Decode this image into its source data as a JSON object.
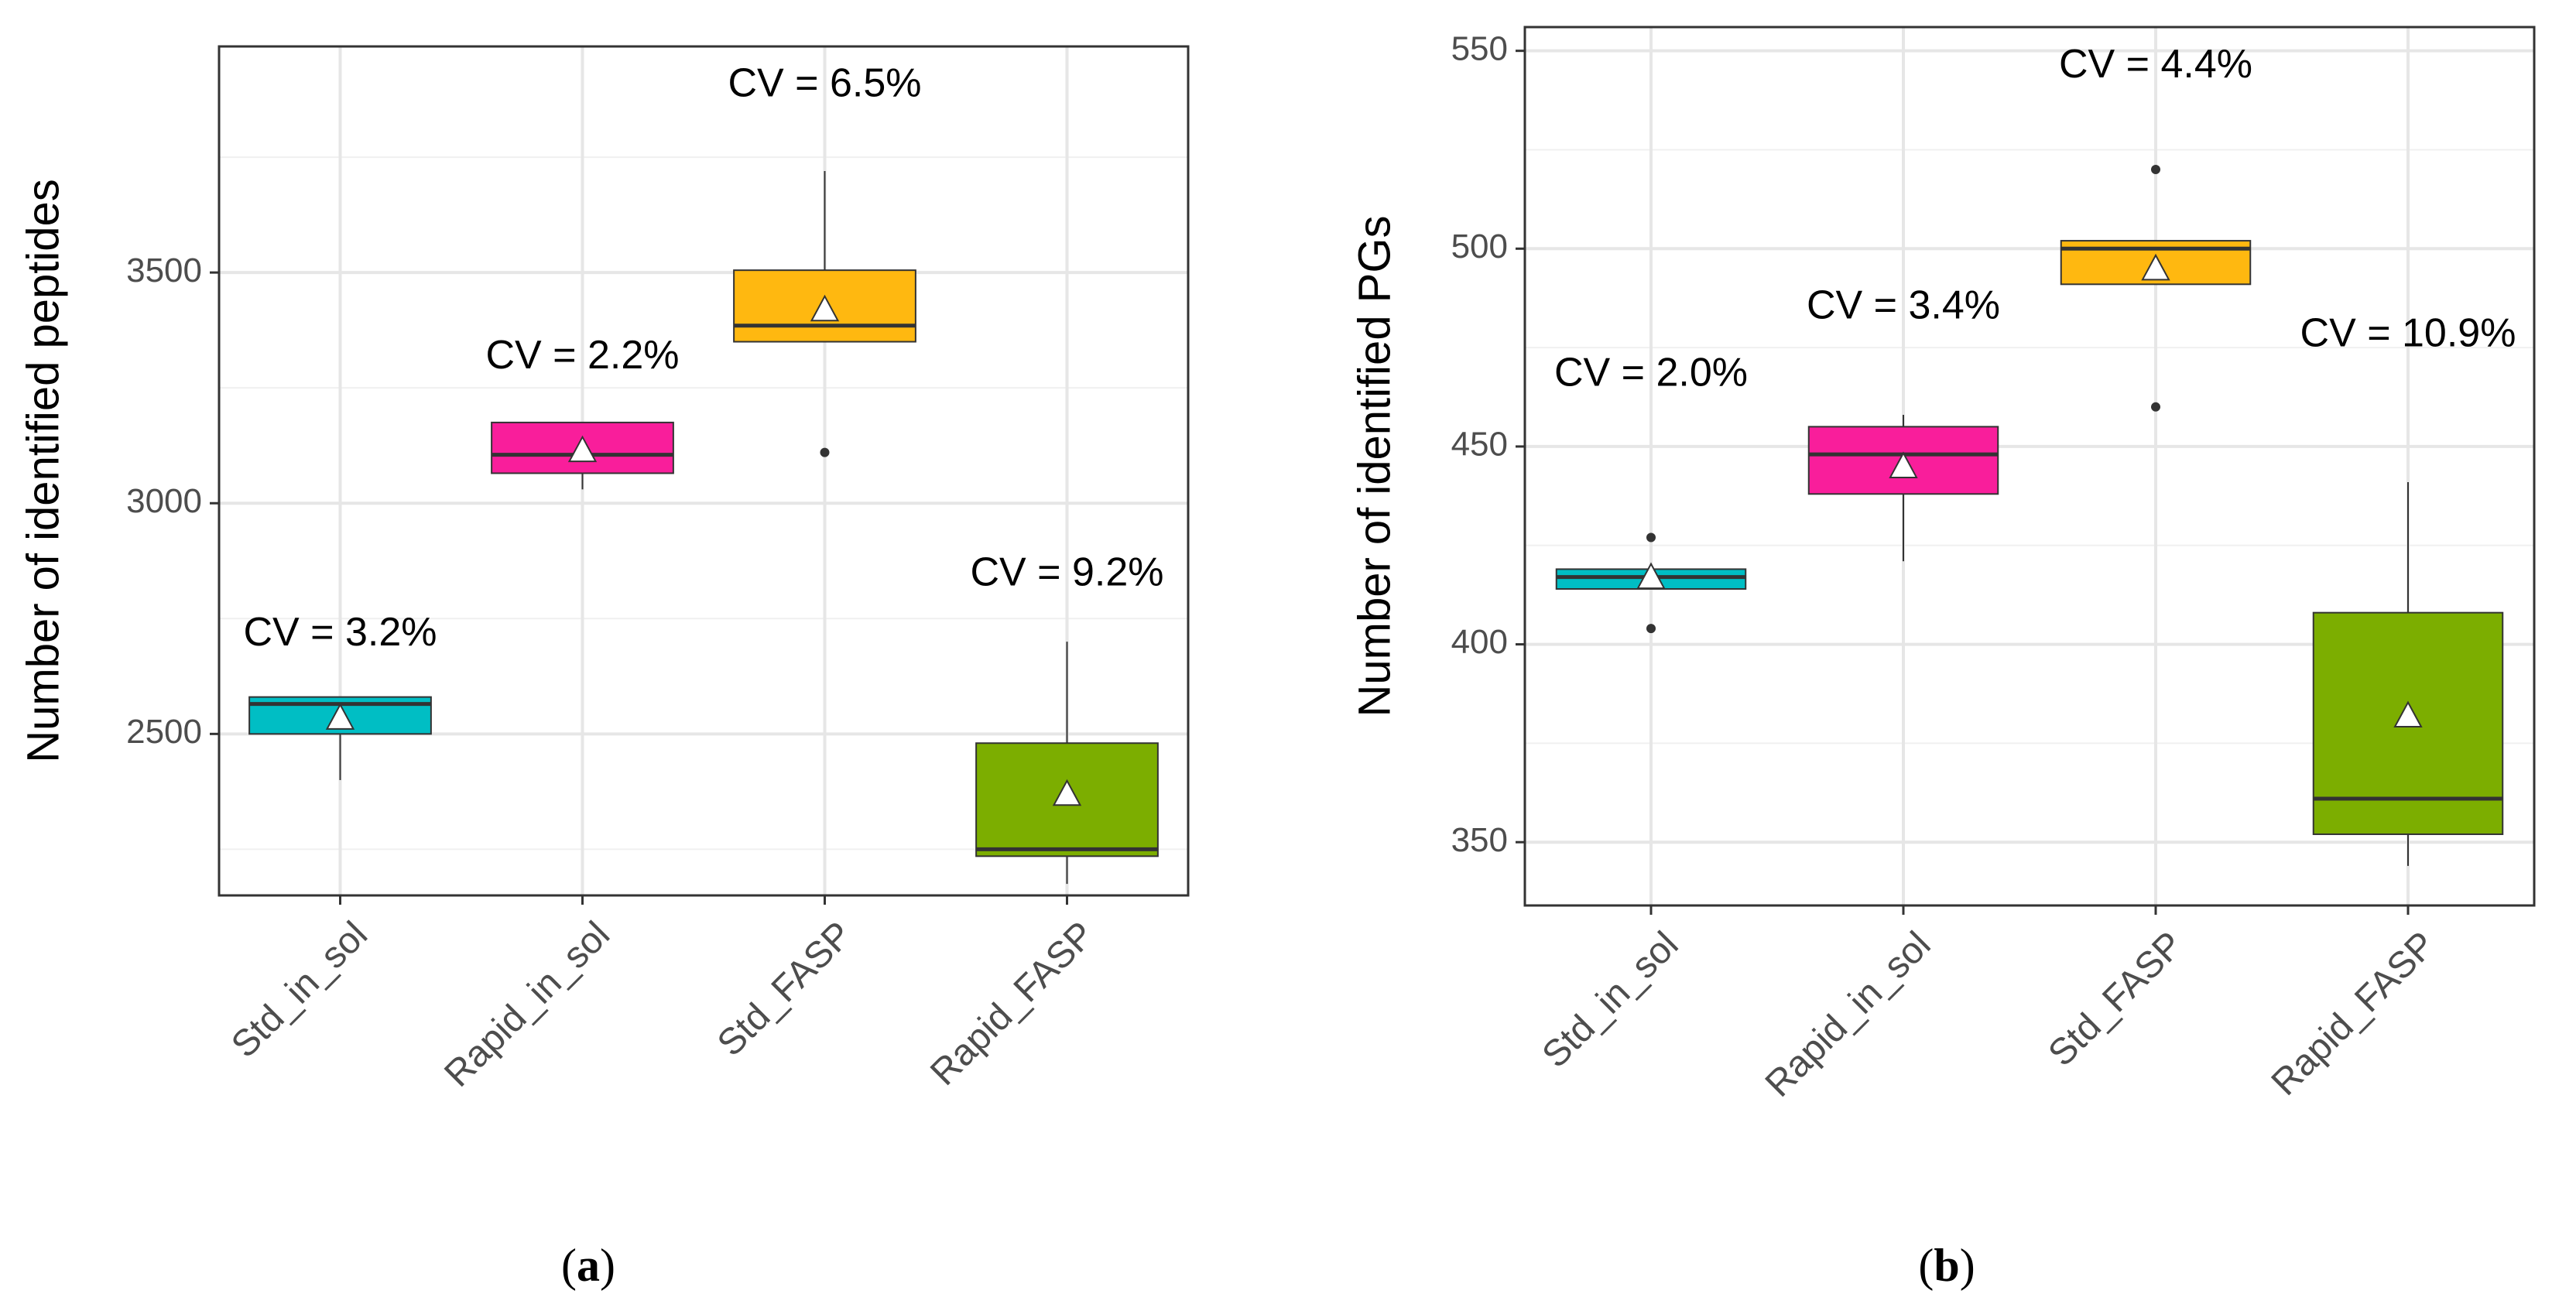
{
  "chart_data": [
    {
      "type": "box",
      "ylabel": "Number of identified peptides",
      "ylim": [
        2150,
        3990
      ],
      "y_ticks": [
        2500,
        3000,
        3500
      ],
      "y_tick_labels": [
        "2500",
        "3000",
        "3500"
      ],
      "categories": [
        "Std_in_sol",
        "Rapid_in_sol",
        "Std_FASP",
        "Rapid_FASP"
      ],
      "colors": [
        "#00BEC4",
        "#F91E9B",
        "#FFB810",
        "#7CAE00"
      ],
      "boxes": [
        {
          "category": "Std_in_sol",
          "whisker_low": 2400,
          "q1": 2500,
          "median": 2565,
          "q3": 2580,
          "whisker_high": 2580,
          "mean": 2535,
          "outliers": []
        },
        {
          "category": "Rapid_in_sol",
          "whisker_low": 3030,
          "q1": 3065,
          "median": 3105,
          "q3": 3175,
          "whisker_high": 3175,
          "mean": 3115,
          "outliers": []
        },
        {
          "category": "Std_FASP",
          "whisker_low": 3350,
          "q1": 3350,
          "median": 3385,
          "q3": 3505,
          "whisker_high": 3720,
          "mean": 3420,
          "outliers": [
            3110
          ]
        },
        {
          "category": "Rapid_FASP",
          "whisker_low": 2175,
          "q1": 2235,
          "median": 2250,
          "q3": 2480,
          "whisker_high": 2700,
          "mean": 2370,
          "outliers": []
        }
      ],
      "annotations": [
        {
          "text": "CV = 3.2%",
          "category": "Std_in_sol",
          "y": 2715
        },
        {
          "text": "CV = 2.2%",
          "category": "Rapid_in_sol",
          "y": 3315
        },
        {
          "text": "CV = 6.5%",
          "category": "Std_FASP",
          "y": 3905
        },
        {
          "text": "CV = 9.2%",
          "category": "Rapid_FASP",
          "y": 2845
        }
      ],
      "panel_label": "a",
      "grid": true
    },
    {
      "type": "box",
      "ylabel": "Number of identified PGs",
      "ylim": [
        334,
        556
      ],
      "y_ticks": [
        350,
        400,
        450,
        500,
        550
      ],
      "y_tick_labels": [
        "350",
        "400",
        "450",
        "500",
        "550"
      ],
      "categories": [
        "Std_in_sol",
        "Rapid_in_sol",
        "Std_FASP",
        "Rapid_FASP"
      ],
      "colors": [
        "#00BEC4",
        "#F91E9B",
        "#FFB810",
        "#7CAE00"
      ],
      "boxes": [
        {
          "category": "Std_in_sol",
          "whisker_low": 414,
          "q1": 414,
          "median": 417,
          "q3": 419,
          "whisker_high": 419,
          "mean": 417,
          "outliers": [
            427,
            404
          ]
        },
        {
          "category": "Rapid_in_sol",
          "whisker_low": 421,
          "q1": 438,
          "median": 448,
          "q3": 455,
          "whisker_high": 458,
          "mean": 445,
          "outliers": []
        },
        {
          "category": "Std_FASP",
          "whisker_low": 491,
          "q1": 491,
          "median": 500,
          "q3": 502,
          "whisker_high": 502,
          "mean": 495,
          "outliers": [
            520,
            460
          ]
        },
        {
          "category": "Rapid_FASP",
          "whisker_low": 344,
          "q1": 352,
          "median": 361,
          "q3": 408,
          "whisker_high": 441,
          "mean": 382,
          "outliers": []
        }
      ],
      "annotations": [
        {
          "text": "CV = 2.0%",
          "category": "Std_in_sol",
          "y": 468
        },
        {
          "text": "CV = 3.4%",
          "category": "Rapid_in_sol",
          "y": 485
        },
        {
          "text": "CV = 4.4%",
          "category": "Std_FASP",
          "y": 546
        },
        {
          "text": "CV = 10.9%",
          "category": "Rapid_FASP",
          "y": 478
        }
      ],
      "panel_label": "b",
      "grid": true
    }
  ]
}
